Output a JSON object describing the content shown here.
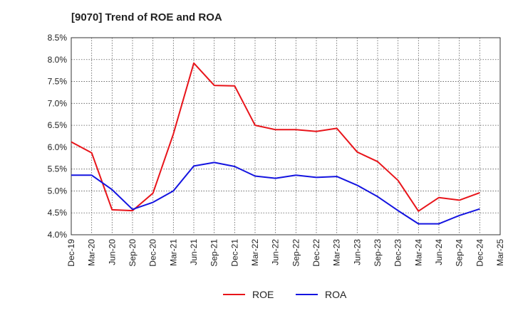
{
  "chart_data": {
    "type": "line",
    "title": "[9070]  Trend of ROE and ROA",
    "xlabel": "",
    "ylabel": "",
    "x": [
      "Dec-19",
      "Mar-20",
      "Jun-20",
      "Sep-20",
      "Dec-20",
      "Mar-21",
      "Jun-21",
      "Sep-21",
      "Dec-21",
      "Mar-22",
      "Jun-22",
      "Sep-22",
      "Dec-22",
      "Mar-23",
      "Jun-23",
      "Sep-23",
      "Dec-23",
      "Mar-24",
      "Jun-24",
      "Sep-24",
      "Dec-24",
      "Mar-25"
    ],
    "ylim": [
      4.0,
      8.5
    ],
    "yticks": [
      "4.0%",
      "4.5%",
      "5.0%",
      "5.5%",
      "6.0%",
      "6.5%",
      "7.0%",
      "7.5%",
      "8.0%",
      "8.5%"
    ],
    "grid": true,
    "legend_position": "bottom",
    "series": [
      {
        "name": "ROE",
        "color": "#e8141a",
        "values": [
          6.12,
          5.87,
          4.57,
          4.55,
          4.95,
          6.3,
          7.92,
          7.41,
          7.4,
          6.5,
          6.4,
          6.4,
          6.36,
          6.43,
          5.89,
          5.67,
          5.24,
          4.54,
          4.85,
          4.79,
          4.96,
          null
        ]
      },
      {
        "name": "ROA",
        "color": "#1414e0",
        "values": [
          5.36,
          5.36,
          5.03,
          4.58,
          4.74,
          5.0,
          5.57,
          5.65,
          5.56,
          5.34,
          5.29,
          5.36,
          5.31,
          5.33,
          5.13,
          4.87,
          4.55,
          4.25,
          4.25,
          4.44,
          4.59,
          null
        ]
      }
    ]
  }
}
